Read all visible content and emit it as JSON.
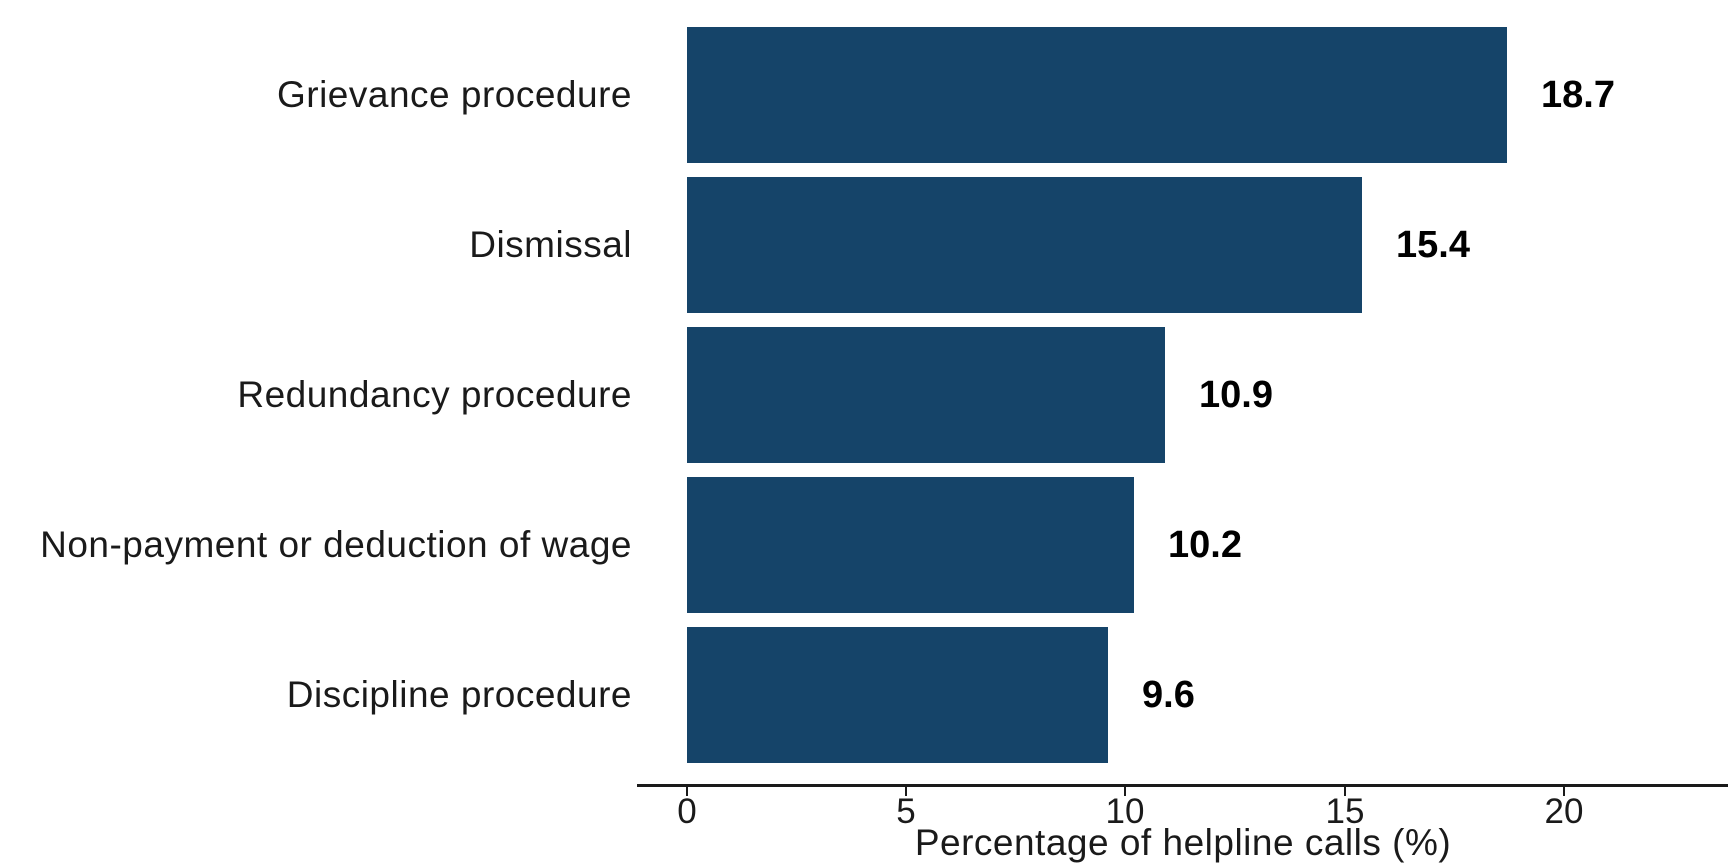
{
  "chart_data": {
    "type": "bar",
    "orientation": "horizontal",
    "title": "",
    "categories": [
      "Grievance procedure",
      "Dismissal",
      "Redundancy procedure",
      "Non-payment or deduction of wage",
      "Discipline procedure"
    ],
    "values": [
      18.7,
      15.4,
      10.9,
      10.2,
      9.6
    ],
    "value_labels": [
      "18.7",
      "15.4",
      "10.9",
      "10.2",
      "9.6"
    ],
    "xlabel": "Percentage of helpline calls (%)",
    "ylabel": "",
    "xticks": [
      0,
      5,
      10,
      15,
      20
    ],
    "xlim": [
      0,
      23.8
    ],
    "grid": "off",
    "legend": "none",
    "bar_color": "#154469",
    "value_label_color": "#000000",
    "axis_color": "#1a1a1a"
  }
}
